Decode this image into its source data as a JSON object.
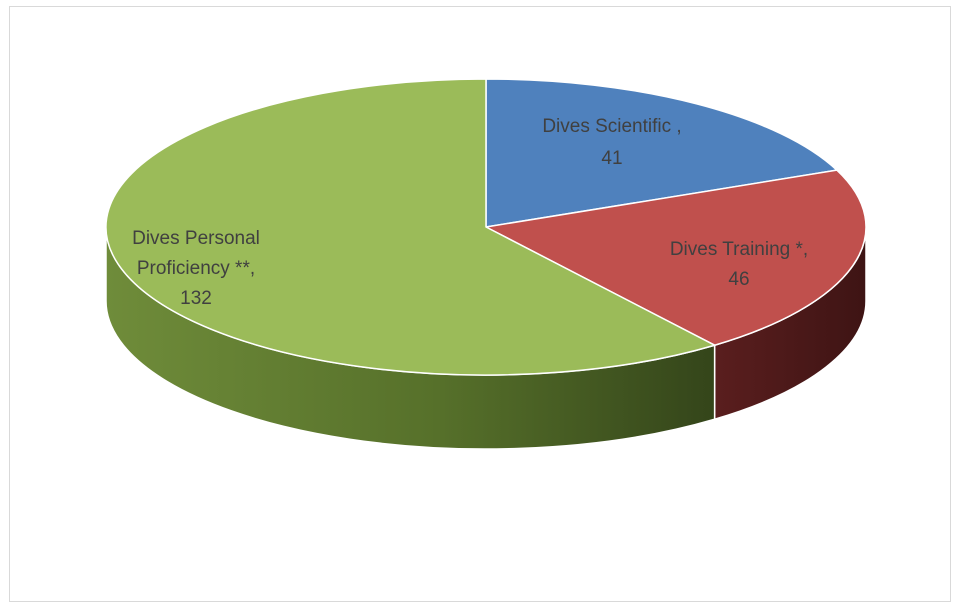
{
  "chart_data": {
    "type": "pie",
    "style": "3d",
    "categories": [
      "Dives Scientific",
      "Dives Training",
      "Dives Personal Proficiency"
    ],
    "values": [
      41,
      46,
      132
    ],
    "colors": [
      "#4f81bd",
      "#c0504d",
      "#9bbb59"
    ],
    "labels": [
      {
        "lines": [
          "Dives Scientific  ,",
          "41"
        ]
      },
      {
        "lines": [
          "Dives Training *,",
          "46"
        ]
      },
      {
        "lines": [
          "Dives Personal",
          "Proficiency **,",
          "132"
        ]
      }
    ],
    "legend": "none"
  }
}
